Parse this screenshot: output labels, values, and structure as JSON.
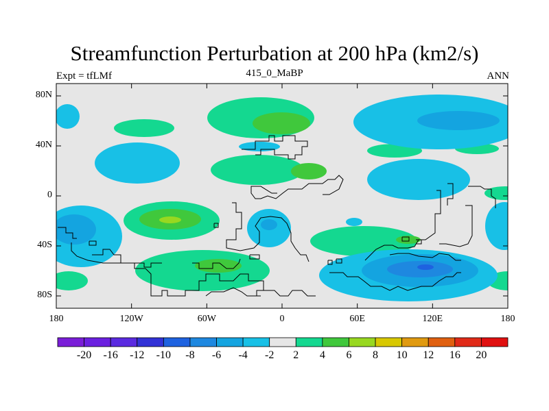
{
  "title": "Streamfunction Perturbation at 200 hPa (km2/s)",
  "subtitle_left": "Expt = tfLMf",
  "subtitle_center": "415_0_MaBP",
  "subtitle_right": "ANN",
  "axes": {
    "lat_ticks": [
      "80N",
      "40N",
      "0",
      "40S",
      "80S"
    ],
    "lon_ticks": [
      "180",
      "120W",
      "60W",
      "0",
      "60E",
      "120E",
      "180"
    ]
  },
  "colorbar": {
    "labels": [
      "-20",
      "-16",
      "-12",
      "-10",
      "-8",
      "-6",
      "-4",
      "-2",
      "2",
      "4",
      "6",
      "8",
      "10",
      "12",
      "16",
      "20"
    ],
    "colors": [
      "#7a1ed8",
      "#6b20e0",
      "#5a2ae0",
      "#3232d6",
      "#1e62e0",
      "#1e88e0",
      "#14a4e0",
      "#18c0e6",
      "#e6e6e6",
      "#14d890",
      "#40c83c",
      "#98d820",
      "#d8c800",
      "#e09a10",
      "#e06010",
      "#e02a18",
      "#e01010"
    ]
  },
  "chart_data": {
    "type": "filled_contour_map",
    "variable": "Streamfunction Perturbation",
    "level": "200 hPa",
    "units": "km2/s",
    "experiment": "tfLMf",
    "run": "415_0_MaBP",
    "season": "ANN",
    "lon_range": [
      -180,
      180
    ],
    "lat_range": [
      -90,
      90
    ],
    "contour_levels": [
      -20,
      -16,
      -12,
      -10,
      -8,
      -6,
      -4,
      -2,
      2,
      4,
      6,
      8,
      10,
      12,
      16,
      20
    ]
  }
}
